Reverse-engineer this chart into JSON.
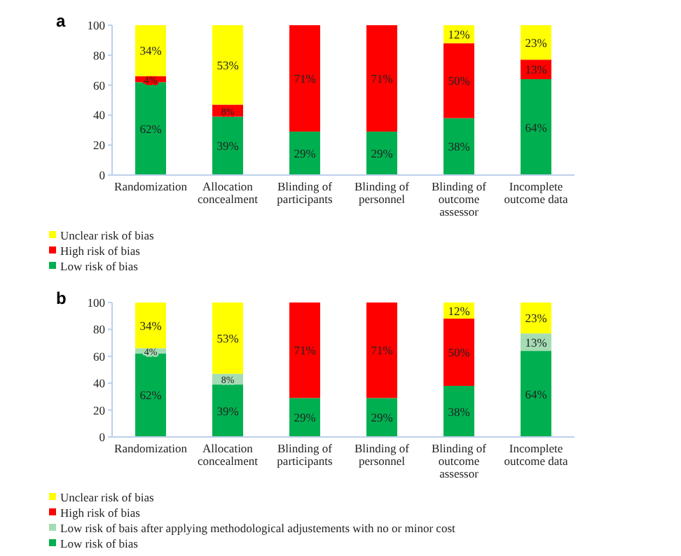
{
  "chart_data": [
    {
      "type": "bar",
      "title": "a",
      "stacked": true,
      "categories": [
        "Randomization",
        "Allocation concealment",
        "Blinding of participants",
        "Blinding of personnel",
        "Blinding of outcome assessor",
        "Incomplete outcome data"
      ],
      "ylim": [
        0,
        100
      ],
      "yticks": [
        0,
        20,
        40,
        60,
        80,
        100
      ],
      "grid": false,
      "legend": "bottom left",
      "series": [
        {
          "name": "Low risk of bias",
          "color": "#00b050",
          "values": [
            62,
            39,
            29,
            29,
            38,
            64
          ],
          "value_labels": [
            "62%",
            "39%",
            "29%",
            "29%",
            "38%",
            "64%"
          ]
        },
        {
          "name": "High risk of bias",
          "color": "#ff0000",
          "values": [
            4,
            8,
            71,
            71,
            50,
            13
          ],
          "value_labels": [
            "4%",
            "8%",
            "71%",
            "71%",
            "50%",
            "13%"
          ]
        },
        {
          "name": "Unclear risk of bias",
          "color": "#ffff00",
          "values": [
            34,
            53,
            null,
            null,
            12,
            23
          ],
          "value_labels": [
            "34%",
            "53%",
            null,
            null,
            "12%",
            "23%"
          ]
        }
      ]
    },
    {
      "type": "bar",
      "title": "b",
      "stacked": true,
      "categories": [
        "Randomization",
        "Allocation concealment",
        "Blinding of participants",
        "Blinding of personnel",
        "Blinding of outcome assessor",
        "Incomplete outcome data"
      ],
      "ylim": [
        0,
        100
      ],
      "yticks": [
        0,
        20,
        40,
        60,
        80,
        100
      ],
      "grid": false,
      "legend": "bottom left",
      "series": [
        {
          "name": "Low risk of bias",
          "color": "#00b050",
          "values": [
            62,
            39,
            29,
            29,
            38,
            64
          ],
          "value_labels": [
            "62%",
            "39%",
            "29%",
            "29%",
            "38%",
            "64%"
          ]
        },
        {
          "name": "Low risk of bais after applying methodological adjustements with no or minor cost",
          "color": "#a6dcb4",
          "values": [
            4,
            8,
            null,
            null,
            null,
            13
          ],
          "value_labels": [
            "4%",
            "8%",
            null,
            null,
            null,
            "13%"
          ]
        },
        {
          "name": "High risk of bias",
          "color": "#ff0000",
          "values": [
            null,
            null,
            71,
            71,
            50,
            null
          ],
          "value_labels": [
            null,
            null,
            "71%",
            "71%",
            "50%",
            null
          ]
        },
        {
          "name": "Unclear risk of bias",
          "color": "#ffff00",
          "values": [
            34,
            53,
            null,
            null,
            12,
            23
          ],
          "value_labels": [
            "34%",
            "53%",
            null,
            null,
            "12%",
            "23%"
          ]
        }
      ]
    }
  ]
}
